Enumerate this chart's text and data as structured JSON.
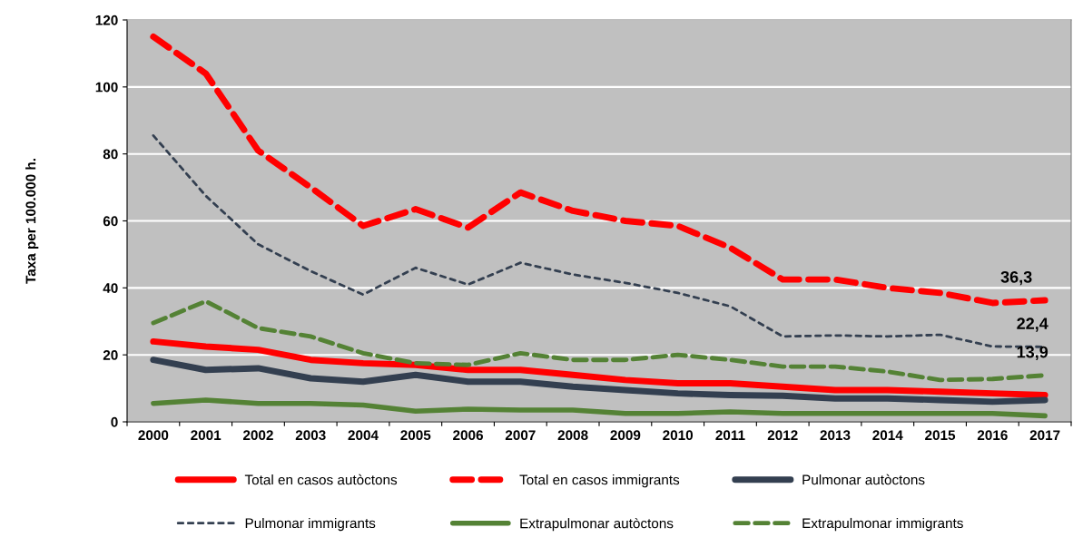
{
  "chart_data": {
    "type": "line",
    "ylabel": "Taxa per 100.000 h.",
    "categories": [
      "2000",
      "2001",
      "2002",
      "2003",
      "2004",
      "2005",
      "2006",
      "2007",
      "2008",
      "2009",
      "2010",
      "2011",
      "2012",
      "2013",
      "2014",
      "2015",
      "2016",
      "2017"
    ],
    "series": [
      {
        "name": "Total en casos autòctons",
        "color": "#ff0000",
        "line_style": "solid",
        "values": [
          24,
          22.5,
          21.5,
          18.5,
          17.5,
          17,
          15.5,
          15.5,
          14,
          12.5,
          11.5,
          11.5,
          10.5,
          9.5,
          9.5,
          9,
          8.5,
          8
        ]
      },
      {
        "name": "Total en casos immigrants",
        "color": "#ff0000",
        "line_style": "dashed",
        "values": [
          115,
          104,
          81,
          70,
          58.5,
          63.5,
          58,
          68.5,
          63,
          60,
          58.5,
          52,
          42.5,
          42.5,
          40,
          38.5,
          35.5,
          36.3
        ]
      },
      {
        "name": "Pulmonar autòctons",
        "color": "#333f50",
        "line_style": "solid",
        "values": [
          18.5,
          15.5,
          16,
          13,
          12,
          14,
          12,
          12,
          10.5,
          9.5,
          8.5,
          8,
          7.8,
          7,
          7,
          6.5,
          6,
          6.5
        ]
      },
      {
        "name": "Pulmonar immigrants",
        "color": "#333f50",
        "line_style": "dashed",
        "values": [
          85.5,
          67.5,
          53,
          45,
          38,
          46,
          41,
          47.5,
          44,
          41.5,
          38.5,
          34.5,
          25.5,
          25.8,
          25.5,
          26,
          22.5,
          22.4
        ]
      },
      {
        "name": "Extrapulmonar autòctons",
        "color": "#548235",
        "line_style": "solid",
        "values": [
          5.5,
          6.5,
          5.5,
          5.5,
          5,
          3.2,
          3.8,
          3.5,
          3.5,
          2.5,
          2.5,
          3,
          2.5,
          2.5,
          2.5,
          2.5,
          2.5,
          1.8
        ]
      },
      {
        "name": "Extrapulmonar immigrants",
        "color": "#548235",
        "line_style": "dashed",
        "values": [
          29.5,
          36,
          28,
          25.5,
          20.5,
          17.5,
          17,
          20.5,
          18.5,
          18.5,
          20,
          18.5,
          16.5,
          16.5,
          15,
          12.5,
          12.8,
          13.9
        ]
      }
    ],
    "annotations": [
      {
        "text": "36,3",
        "x": "2017",
        "y": 36.3
      },
      {
        "text": "22,4",
        "x": "2017",
        "y": 22.4
      },
      {
        "text": "13,9",
        "x": "2017",
        "y": 13.9
      }
    ],
    "ylim": [
      0,
      120
    ],
    "yticks": [
      0,
      20,
      40,
      60,
      80,
      100,
      120
    ],
    "grid": "y",
    "legend": "bottom",
    "marker": "none"
  }
}
